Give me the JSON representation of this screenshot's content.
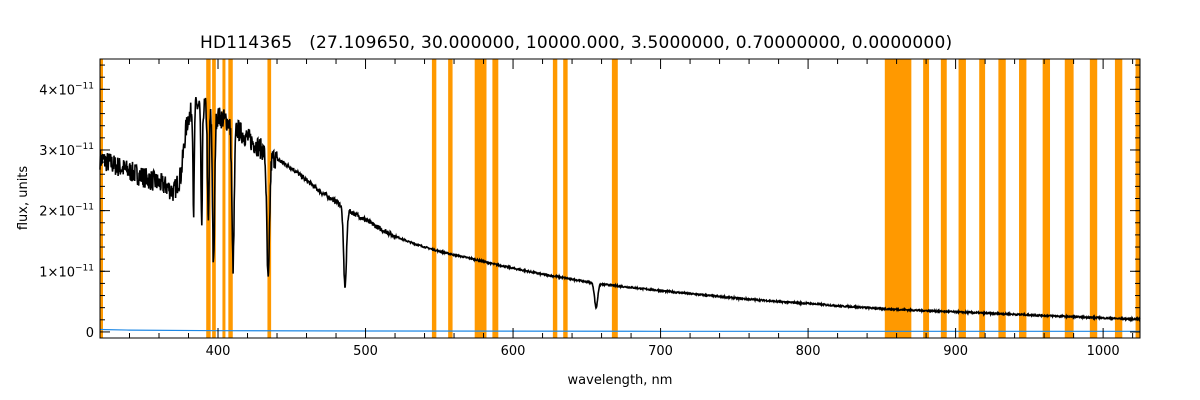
{
  "chart_data": {
    "type": "line",
    "title": "HD114365",
    "subtitle": "(27.109650, 30.000000, 10000.000, 3.5000000, 0.70000000, 0.0000000)",
    "xlabel": "wavelength, nm",
    "ylabel": "flux, units",
    "xlim": [
      320,
      1025
    ],
    "ylim": [
      -1e-12,
      4.5e-11
    ],
    "x_ticks": [
      400,
      500,
      600,
      700,
      800,
      900,
      1000
    ],
    "y_ticks": [
      {
        "value": 0,
        "mantissa": "0",
        "exponent": ""
      },
      {
        "value": 1e-11,
        "mantissa": "1×10",
        "exponent": "−11"
      },
      {
        "value": 2e-11,
        "mantissa": "2×10",
        "exponent": "−11"
      },
      {
        "value": 3e-11,
        "mantissa": "3×10",
        "exponent": "−11"
      },
      {
        "value": 4e-11,
        "mantissa": "4×10",
        "exponent": "−11"
      }
    ],
    "grid": false,
    "colors": {
      "flux": "#000000",
      "error": "#1e88e5",
      "mask": "#ff9900"
    },
    "masked_regions": [
      [
        320,
        322
      ],
      [
        392,
        395
      ],
      [
        396,
        398.5
      ],
      [
        403,
        405
      ],
      [
        407,
        410
      ],
      [
        433.5,
        436
      ],
      [
        545,
        548
      ],
      [
        556,
        559
      ],
      [
        574,
        582
      ],
      [
        586,
        590
      ],
      [
        627,
        630
      ],
      [
        634,
        637
      ],
      [
        667,
        671
      ],
      [
        852,
        870
      ],
      [
        878,
        882
      ],
      [
        890,
        894
      ],
      [
        902,
        907
      ],
      [
        916,
        920
      ],
      [
        929,
        934
      ],
      [
        943,
        948
      ],
      [
        959,
        964
      ],
      [
        974,
        980
      ],
      [
        991,
        996
      ],
      [
        1008,
        1013
      ],
      [
        1022,
        1025
      ]
    ],
    "series": [
      {
        "values": [
          [
            320,
            2.85e-11
          ],
          [
            330,
            2.75e-11
          ],
          [
            340,
            2.65e-11
          ],
          [
            350,
            2.55e-11
          ],
          [
            360,
            2.45e-11
          ],
          [
            365,
            2.4e-11
          ],
          [
            370,
            2.3e-11
          ],
          [
            375,
            2.6e-11
          ],
          [
            378,
            3.3e-11
          ],
          [
            380,
            3.55e-11
          ],
          [
            384,
            3.7e-11
          ],
          [
            388,
            3.75e-11
          ],
          [
            392,
            3.7e-11
          ],
          [
            396,
            3.6e-11
          ],
          [
            400,
            3.55e-11
          ],
          [
            405,
            3.5e-11
          ],
          [
            410,
            3.4e-11
          ],
          [
            415,
            3.3e-11
          ],
          [
            420,
            3.2e-11
          ],
          [
            425,
            3.1e-11
          ],
          [
            430,
            3e-11
          ],
          [
            434,
            2.9e-11
          ],
          [
            440,
            2.85e-11
          ],
          [
            450,
            2.7e-11
          ],
          [
            460,
            2.5e-11
          ],
          [
            470,
            2.3e-11
          ],
          [
            480,
            2.15e-11
          ],
          [
            486,
            2.05e-11
          ],
          [
            490,
            1.98e-11
          ],
          [
            500,
            1.85e-11
          ],
          [
            510,
            1.7e-11
          ],
          [
            520,
            1.58e-11
          ],
          [
            530,
            1.48e-11
          ],
          [
            540,
            1.4e-11
          ],
          [
            550,
            1.33e-11
          ],
          [
            560,
            1.27e-11
          ],
          [
            570,
            1.22e-11
          ],
          [
            585,
            1.13e-11
          ],
          [
            600,
            1.05e-11
          ],
          [
            620,
            9.5e-12
          ],
          [
            640,
            8.7e-12
          ],
          [
            656,
            8e-12
          ],
          [
            670,
            7.6e-12
          ],
          [
            700,
            6.8e-12
          ],
          [
            720,
            6.3e-12
          ],
          [
            750,
            5.6e-12
          ],
          [
            780,
            5e-12
          ],
          [
            800,
            4.7e-12
          ],
          [
            820,
            4.3e-12
          ],
          [
            840,
            4e-12
          ],
          [
            852,
            3.8e-12
          ],
          [
            870,
            3.6e-12
          ],
          [
            900,
            3.3e-12
          ],
          [
            930,
            3e-12
          ],
          [
            960,
            2.7e-12
          ],
          [
            990,
            2.4e-12
          ],
          [
            1010,
            2.2e-12
          ],
          [
            1025,
            2.1e-12
          ]
        ]
      },
      {
        "values": [
          [
            320,
            4e-13
          ],
          [
            340,
            3e-13
          ],
          [
            400,
            2e-13
          ],
          [
            500,
            1.5e-13
          ],
          [
            700,
            1e-13
          ],
          [
            1025,
            1e-13
          ]
        ]
      }
    ],
    "absorption_lines": [
      {
        "x": 383.5,
        "depth": 1.7e-11,
        "width": 0.6
      },
      {
        "x": 388.9,
        "depth": 2e-11,
        "width": 0.7
      },
      {
        "x": 393.4,
        "depth": 1.9e-11,
        "width": 0.8
      },
      {
        "x": 397.0,
        "depth": 2.5e-11,
        "width": 1.0
      },
      {
        "x": 410.2,
        "depth": 2.3e-11,
        "width": 1.1
      },
      {
        "x": 434.0,
        "depth": 2.1e-11,
        "width": 1.3
      },
      {
        "x": 486.1,
        "depth": 1.3e-11,
        "width": 1.4
      },
      {
        "x": 656.3,
        "depth": 4e-12,
        "width": 1.5
      }
    ]
  }
}
